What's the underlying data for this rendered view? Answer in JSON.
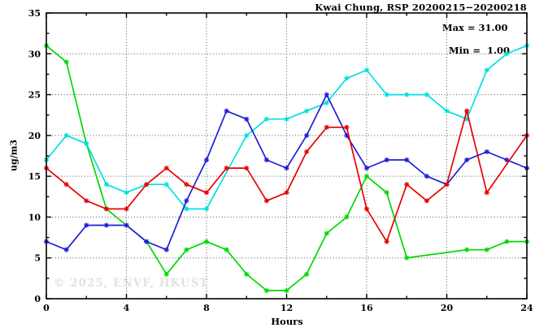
{
  "chart_data": {
    "type": "line",
    "title": "Kwai Chung, RSP 20200215−20200218",
    "legend": {
      "max_label": "Max = 31.00",
      "min_label": "Min =  1.00",
      "position": "top-right-inside"
    },
    "xlabel": "Hours",
    "ylabel": "ug/m3",
    "watermark": "© 2025, ENVF, HKUST",
    "xlim": [
      0,
      24
    ],
    "ylim": [
      0,
      35
    ],
    "x_major_ticks": [
      0,
      4,
      8,
      12,
      16,
      20,
      24
    ],
    "x_minor_tick_step": 2,
    "y_major_ticks": [
      0,
      5,
      10,
      15,
      20,
      25,
      30,
      35
    ],
    "y_minor_tick_step": 2.5,
    "grid": "dotted lines at major ticks, mirrored tick marks on all four sides",
    "marker_style": "star-asterisk",
    "x": [
      0,
      1,
      2,
      3,
      4,
      5,
      6,
      7,
      8,
      9,
      10,
      11,
      12,
      13,
      14,
      15,
      16,
      17,
      18,
      19,
      20,
      21,
      22,
      23,
      24
    ],
    "series": [
      {
        "name": "green-line",
        "color": "#00d800",
        "values": [
          31,
          29,
          19,
          11,
          9,
          7,
          3,
          6,
          7,
          6,
          3,
          1,
          1,
          3,
          8,
          10,
          15,
          13,
          5,
          null,
          null,
          6,
          6,
          7,
          7
        ]
      },
      {
        "name": "cyan-line",
        "color": "#00e0e0",
        "values": [
          17,
          20,
          19,
          14,
          13,
          14,
          14,
          11,
          11,
          null,
          20,
          22,
          22,
          23,
          24,
          27,
          28,
          25,
          25,
          25,
          23,
          22,
          28,
          30,
          31
        ]
      },
      {
        "name": "blue-line",
        "color": "#1e1ed8",
        "values": [
          7,
          6,
          9,
          9,
          9,
          7,
          6,
          12,
          17,
          23,
          22,
          17,
          16,
          20,
          25,
          20,
          16,
          17,
          17,
          15,
          14,
          17,
          18,
          17,
          16
        ]
      },
      {
        "name": "red-line",
        "color": "#e80000",
        "values": [
          16,
          14,
          12,
          11,
          11,
          14,
          16,
          14,
          13,
          16,
          16,
          12,
          13,
          18,
          21,
          21,
          11,
          7,
          14,
          12,
          14,
          23,
          13,
          null,
          20
        ]
      }
    ],
    "stats_shown": {
      "max": 31.0,
      "min": 1.0
    }
  }
}
